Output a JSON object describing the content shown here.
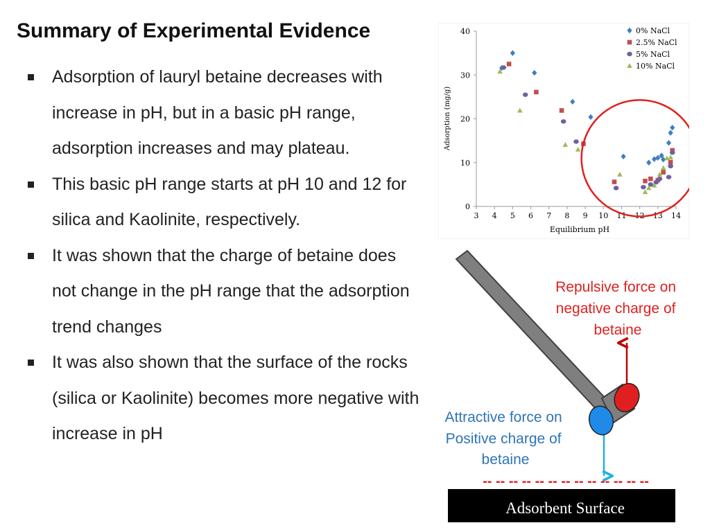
{
  "slide": {
    "title": "Summary of Experimental Evidence",
    "bullets": [
      "Adsorption of lauryl betaine decreases with increase in pH, but in a basic pH range, adsorption increases and may plateau.",
      "This basic pH range starts at pH  10 and 12 for silica and Kaolinite, respectively.",
      "It was shown that the charge of betaine does not change in the pH range that the adsorption trend changes",
      "It was also shown that the surface of the rocks (silica or Kaolinite) becomes more negative with increase in pH"
    ]
  },
  "chart_data": {
    "type": "scatter",
    "xlabel": "Equilibrium pH",
    "ylabel": "Adsorption (mg/g)",
    "xlim": [
      3,
      14
    ],
    "ylim": [
      0,
      40
    ],
    "xticks": [
      3,
      4,
      5,
      6,
      7,
      8,
      9,
      10,
      11,
      12,
      13,
      14
    ],
    "yticks": [
      0,
      10,
      20,
      30,
      40
    ],
    "grid": false,
    "legend_position": "top-right",
    "series": [
      {
        "name": "0% NaCl",
        "marker": "diamond",
        "color": "#3f7fc1",
        "points": [
          [
            4.4,
            31.6
          ],
          [
            5.0,
            35.0
          ],
          [
            6.2,
            30.5
          ],
          [
            8.3,
            23.9
          ],
          [
            9.3,
            20.4
          ],
          [
            11.1,
            11.4
          ],
          [
            12.5,
            10.0
          ],
          [
            12.8,
            10.8
          ],
          [
            13.0,
            11.1
          ],
          [
            13.2,
            11.6
          ],
          [
            13.3,
            10.7
          ],
          [
            13.6,
            14.5
          ],
          [
            13.7,
            16.8
          ],
          [
            13.8,
            18.0
          ]
        ],
        "marker_name": "diamond-icon"
      },
      {
        "name": "2.5% NaCl",
        "marker": "square",
        "color": "#c0504d",
        "points": [
          [
            4.8,
            32.5
          ],
          [
            6.3,
            26.1
          ],
          [
            7.7,
            21.9
          ],
          [
            8.9,
            14.3
          ],
          [
            10.6,
            5.6
          ],
          [
            12.3,
            5.8
          ],
          [
            12.6,
            6.3
          ],
          [
            13.0,
            6.0
          ],
          [
            13.3,
            7.8
          ],
          [
            13.7,
            10.1
          ],
          [
            13.8,
            12.8
          ]
        ],
        "marker_name": "square-icon"
      },
      {
        "name": "5%  NaCl",
        "marker": "circle",
        "color": "#7060a0",
        "points": [
          [
            4.5,
            31.7
          ],
          [
            5.7,
            25.5
          ],
          [
            7.8,
            19.4
          ],
          [
            8.5,
            14.8
          ],
          [
            10.7,
            4.2
          ],
          [
            12.2,
            4.4
          ],
          [
            12.6,
            5.0
          ],
          [
            12.9,
            5.5
          ],
          [
            13.1,
            6.3
          ],
          [
            13.6,
            6.7
          ],
          [
            13.7,
            9.2
          ],
          [
            13.8,
            12.3
          ]
        ],
        "marker_name": "circle-icon"
      },
      {
        "name": "10% NaCl",
        "marker": "triangle",
        "color": "#9bbb59",
        "points": [
          [
            4.3,
            30.8
          ],
          [
            5.4,
            21.9
          ],
          [
            7.9,
            14.1
          ],
          [
            8.6,
            13.0
          ],
          [
            10.9,
            7.3
          ],
          [
            12.3,
            3.3
          ],
          [
            12.5,
            4.2
          ],
          [
            12.8,
            4.8
          ],
          [
            13.1,
            7.3
          ],
          [
            13.3,
            8.8
          ],
          [
            13.5,
            11.0
          ],
          [
            13.7,
            11.2
          ]
        ],
        "marker_name": "triangle-icon"
      }
    ],
    "highlight_circle": {
      "center": [
        12.0,
        11.0
      ],
      "color": "#e02020"
    }
  },
  "diagram": {
    "repulsive_label_lines": [
      "Repulsive force on",
      "negative charge of",
      "betaine"
    ],
    "attractive_label_lines": [
      "Attractive force on",
      "Positive charge of",
      "betaine"
    ],
    "negative_charges": "-- -- -- -- -- -- -- -- -- -- -- -- --",
    "surface_label": "Adsorbent Surface",
    "colors": {
      "repulsive": "#e02020",
      "attractive": "#2e75b6",
      "arrow_up": "#c00000",
      "arrow_down": "#20b0e0",
      "rod": "#7f7f7f",
      "rod_outline": "#404040",
      "surface": "#000000",
      "surface_text": "#ffffff"
    }
  }
}
